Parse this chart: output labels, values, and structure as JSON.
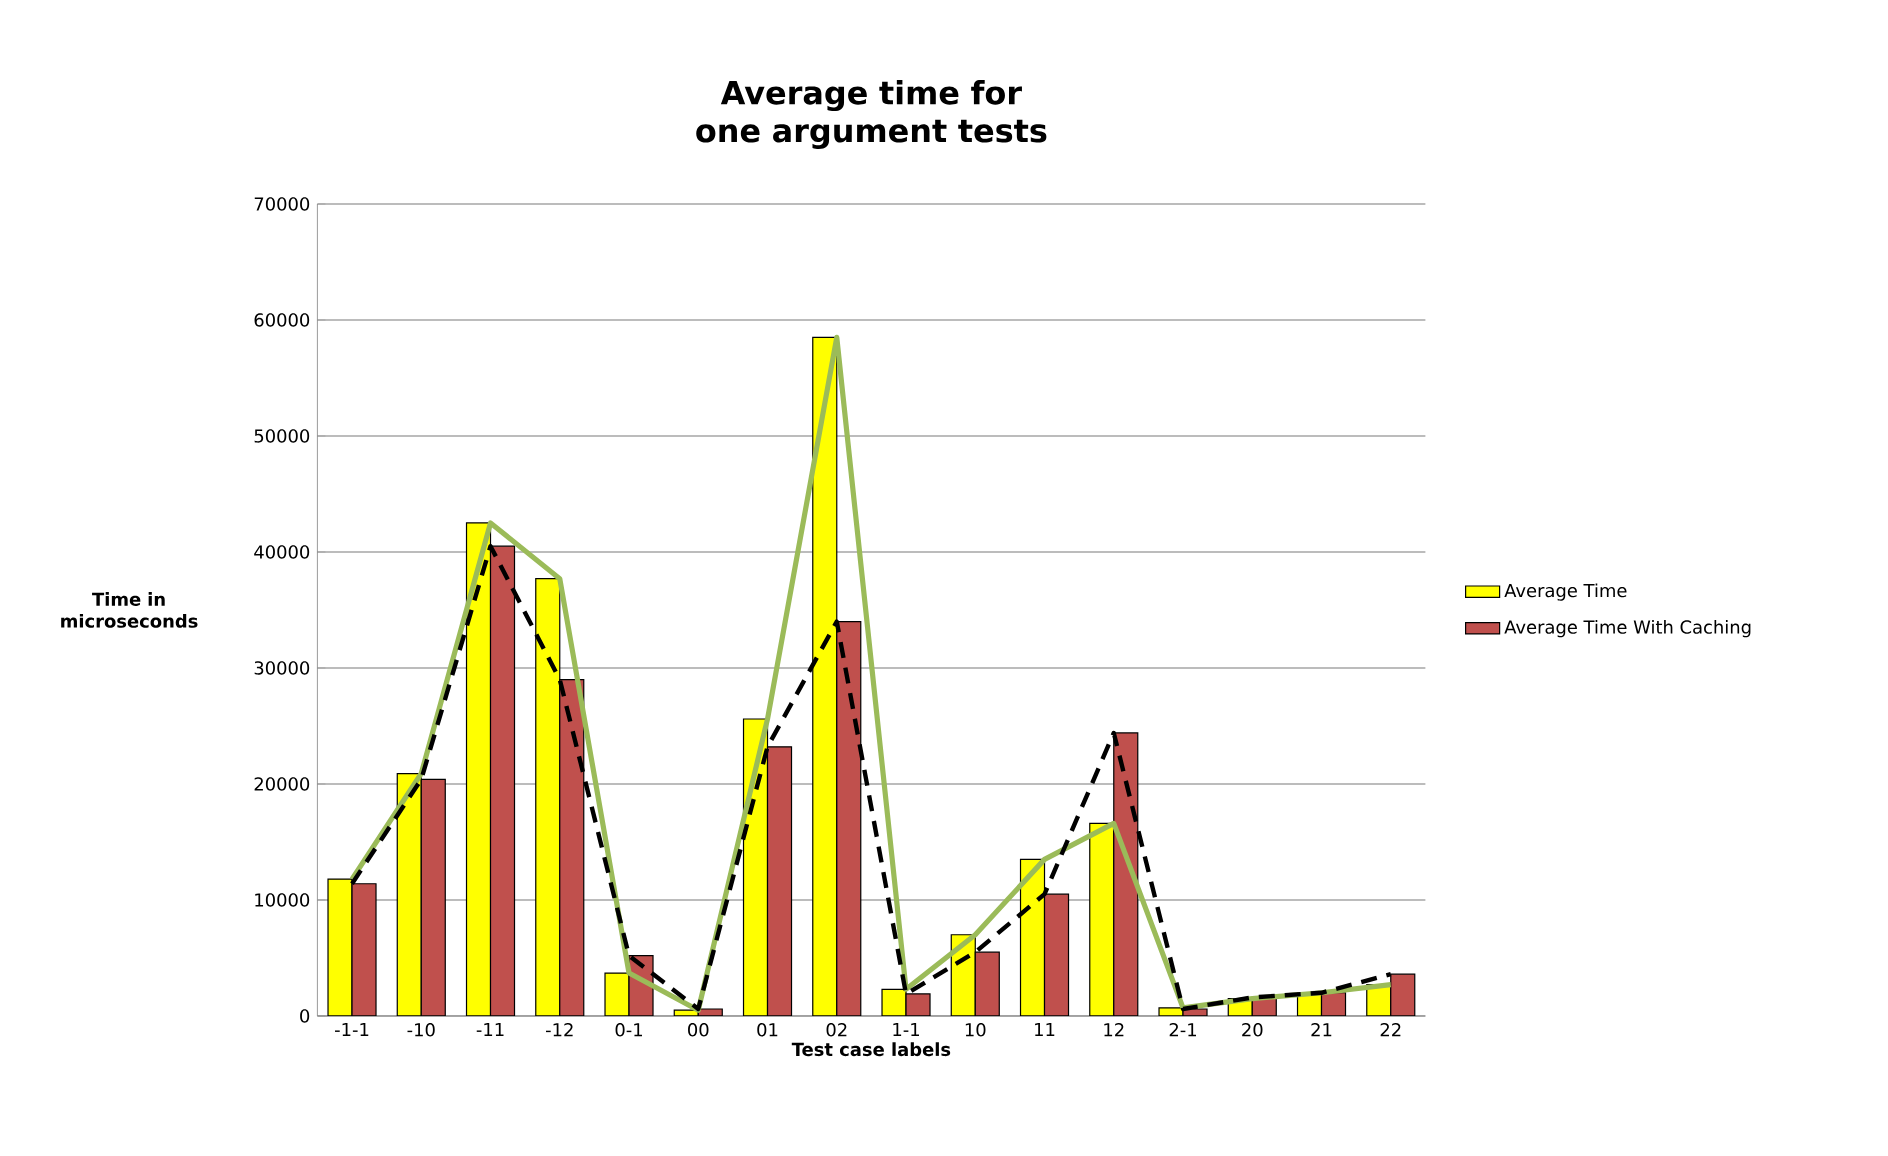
{
  "chart_data": {
    "type": "bar",
    "title": "Average time for one argument tests",
    "xlabel": "Test case labels",
    "ylabel": "Time in microseconds",
    "categories": [
      "-1-1",
      "-10",
      "-11",
      "-12",
      "0-1",
      "00",
      "01",
      "02",
      "1-1",
      "10",
      "11",
      "12",
      "2-1",
      "20",
      "21",
      "22"
    ],
    "series": [
      {
        "name": "Average Time",
        "color": "#ffff00",
        "values": [
          11800,
          20900,
          42500,
          37700,
          3700,
          500,
          25600,
          58500,
          2300,
          7000,
          13500,
          16600,
          700,
          1500,
          2000,
          2700
        ]
      },
      {
        "name": "Average Time With Caching",
        "color": "#c0504d",
        "values": [
          11400,
          20400,
          40500,
          29000,
          5200,
          600,
          23200,
          34000,
          1900,
          5500,
          10500,
          24400,
          600,
          1600,
          2000,
          3600
        ]
      },
      {
        "type": "line",
        "color": "#9bbb59",
        "line_style": "solid",
        "values": [
          11800,
          20900,
          42500,
          37700,
          3700,
          500,
          25600,
          58500,
          2300,
          7000,
          13500,
          16600,
          700,
          1500,
          2000,
          2700
        ]
      },
      {
        "type": "line",
        "color": "#000000",
        "line_style": "dashed",
        "values": [
          11400,
          20400,
          40500,
          29000,
          5200,
          600,
          23200,
          34000,
          1900,
          5500,
          10500,
          24400,
          600,
          1600,
          2000,
          3600
        ]
      }
    ],
    "ylim": [
      0,
      70000
    ],
    "yticks": [
      0,
      10000,
      20000,
      30000,
      40000,
      50000,
      60000,
      70000
    ],
    "grid": "y",
    "legend": "right"
  }
}
